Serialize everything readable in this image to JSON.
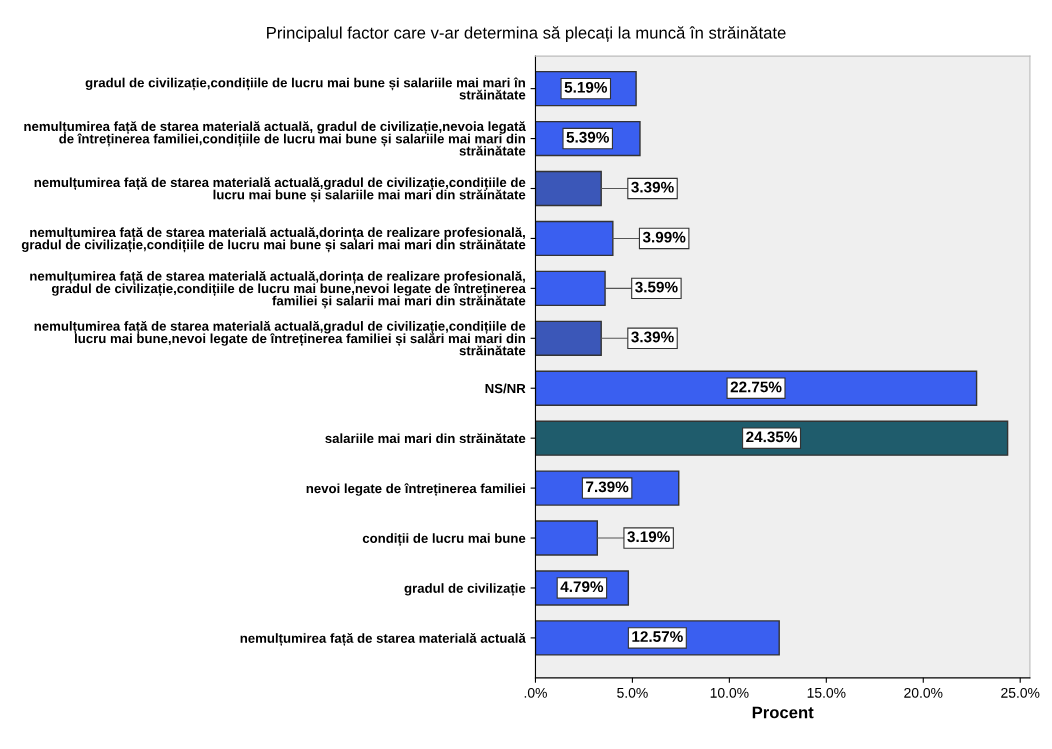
{
  "chart_data": {
    "type": "bar",
    "orientation": "horizontal",
    "title": "Principalul factor care v-ar determina să plecați la muncă în străinătate",
    "xlabel": "Procent",
    "categories": [
      "gradul de civilizație,condițiile de lucru mai bune și salariile mai mari în\nstrăinătate",
      "nemulțumirea față de starea materială actuală, gradul de civilizație,nevoia legată\nde întreținerea familiei,condițiile de lucru mai bune și salariile mai mari din\nstrăinătate",
      "nemulțumirea față de starea materială actuală,gradul de civilizație,condițiile de\nlucru mai bune și salariile mai mari din străinătate",
      "nemulțumirea față de starea materială actuală,dorința de realizare profesională,\ngradul de civilizație,condițiile de lucru mai bune și salari mai mari din străinătate",
      "nemulțumirea față de starea materială actuală,dorința de realizare profesională,\ngradul de civilizație,condițiile de lucru mai bune,nevoi legate de întreținerea\nfamiliei și salarii mai mari din străinătate",
      "nemulțumirea față de starea materială actuală,gradul de civilizație,condițiile de\nlucru mai bune,nevoi legate de întreținerea familiei și salări mai mari din\nstrăinătate",
      "NS/NR",
      "salariile mai mari din străinătate",
      "nevoi legate de întreținerea familiei",
      "condiții de lucru mai bune",
      "gradul de civilizație",
      "nemulțumirea față de starea materială actuală"
    ],
    "values": [
      5.19,
      5.39,
      3.39,
      3.99,
      3.59,
      3.39,
      22.75,
      24.35,
      7.39,
      3.19,
      4.79,
      12.57
    ],
    "value_labels": [
      "5.19%",
      "5.39%",
      "3.39%",
      "3.99%",
      "3.59%",
      "3.39%",
      "22.75%",
      "24.35%",
      "7.39%",
      "3.19%",
      "4.79%",
      "12.57%"
    ],
    "colors": [
      "#3a5ff0",
      "#3a5ff0",
      "#3b57b8",
      "#3a5ff0",
      "#3a5ff0",
      "#3b57b8",
      "#3a5ff0",
      "#1f5c6c",
      "#3a5ff0",
      "#3a5ff0",
      "#3a5ff0",
      "#3a5ff0"
    ],
    "xlim": [
      0,
      25.5
    ],
    "xticks": [
      {
        "value": 0,
        "label": ".0%"
      },
      {
        "value": 5,
        "label": "5.0%"
      },
      {
        "value": 10,
        "label": "10.0%"
      },
      {
        "value": 15,
        "label": "15.0%"
      },
      {
        "value": 20,
        "label": "20.0%"
      },
      {
        "value": 25,
        "label": "25.0%"
      }
    ],
    "grid": false,
    "legend": false
  }
}
